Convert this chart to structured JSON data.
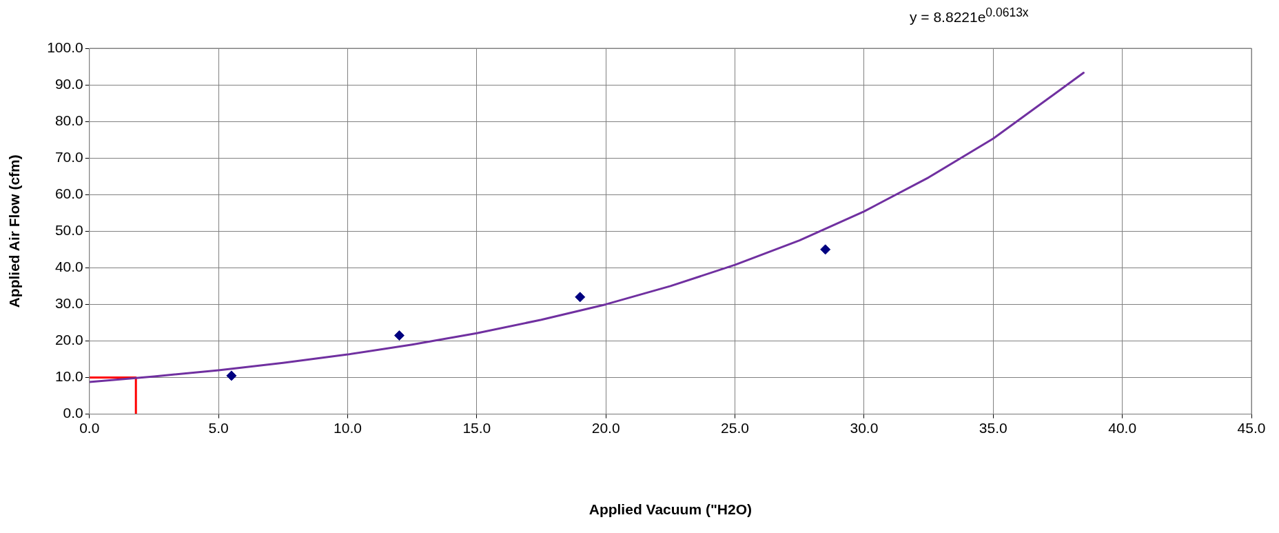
{
  "chart_data": {
    "type": "scatter",
    "xlabel": "Applied Vacuum (\"H2O)",
    "ylabel": "Applied Air Flow (cfm)",
    "annotations": [
      "y = 8.8221e$^{0.0613x}$"
    ],
    "series": [
      {
        "color": "#000080",
        "marker": "diamond",
        "x": [
          5.5,
          12.0,
          19.0,
          28.5
        ],
        "values": [
          10.5,
          21.5,
          32.0,
          45.0
        ]
      },
      {
        "type": "line",
        "color": "#7030a0",
        "marker": "none",
        "x": [
          0,
          2.5,
          5,
          7.5,
          10,
          12.5,
          15,
          17.5,
          20,
          22.5,
          25,
          27.5,
          30,
          32.5,
          35,
          38.5
        ],
        "values": [
          8.8,
          10.3,
          12.0,
          14.0,
          16.3,
          19.0,
          22.1,
          25.8,
          30.0,
          35.0,
          40.8,
          47.5,
          55.4,
          64.7,
          75.3,
          93.3
        ]
      },
      {
        "type": "line",
        "color": "#ff0000",
        "marker": "none",
        "x": [
          0,
          1.8,
          1.8
        ],
        "values": [
          10,
          10,
          0
        ]
      }
    ],
    "xlim": [
      0,
      45
    ],
    "xticks": [
      {
        "value": 0,
        "label": "0.0"
      },
      {
        "value": 5,
        "label": "5.0"
      },
      {
        "value": 10,
        "label": "10.0"
      },
      {
        "value": 15,
        "label": "15.0"
      },
      {
        "value": 20,
        "label": "20.0"
      },
      {
        "value": 25,
        "label": "25.0"
      },
      {
        "value": 30,
        "label": "30.0"
      },
      {
        "value": 35,
        "label": "35.0"
      },
      {
        "value": 40,
        "label": "40.0"
      },
      {
        "value": 45,
        "label": "45.0"
      }
    ],
    "ylim": [
      0,
      100
    ],
    "yticks": [
      {
        "value": 0,
        "label": "0.0"
      },
      {
        "value": 10,
        "label": "10.0"
      },
      {
        "value": 20,
        "label": "20.0"
      },
      {
        "value": 30,
        "label": "30.0"
      },
      {
        "value": 40,
        "label": "40.0"
      },
      {
        "value": 50,
        "label": "50.0"
      },
      {
        "value": 60,
        "label": "60.0"
      },
      {
        "value": 70,
        "label": "70.0"
      },
      {
        "value": 80,
        "label": "80.0"
      },
      {
        "value": 90,
        "label": "90.0"
      },
      {
        "value": 100,
        "label": "100.0"
      }
    ],
    "grid": true,
    "legend": false
  }
}
